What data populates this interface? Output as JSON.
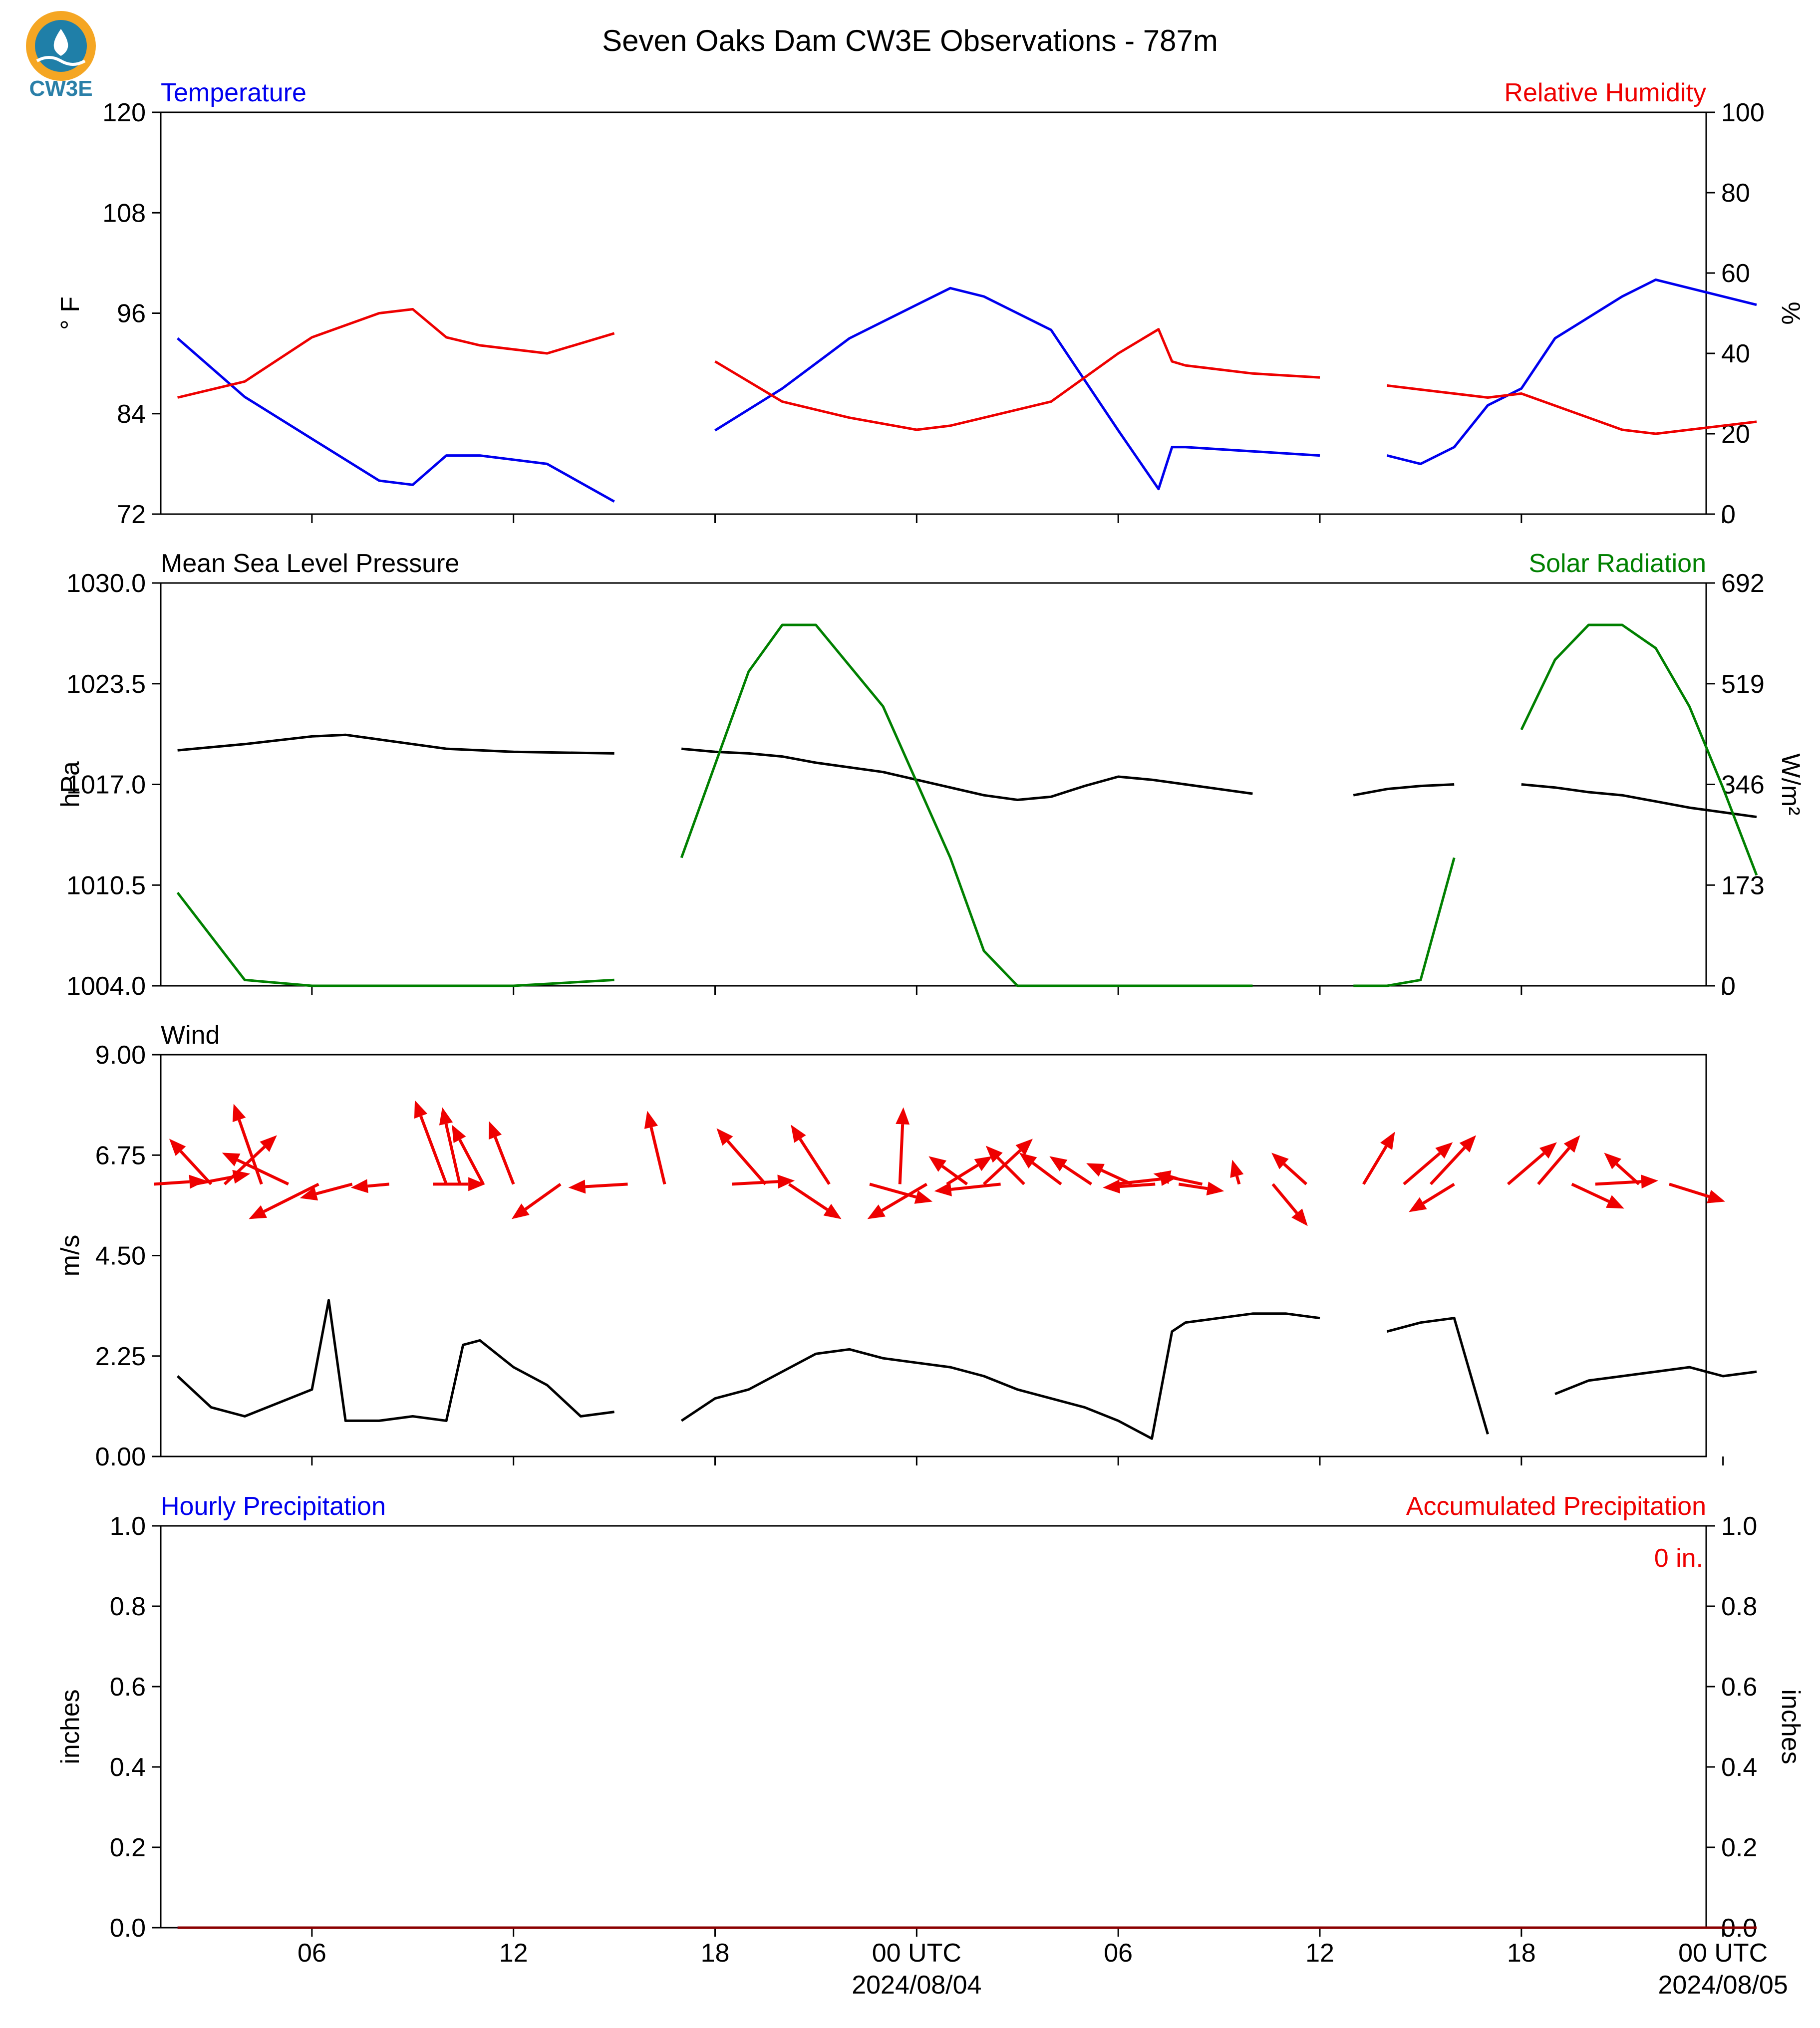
{
  "title": "Seven Oaks Dam CW3E Observations - 787m",
  "logo_text": "CW3E",
  "colors": {
    "temperature": "#0000ee",
    "humidity": "#ee0000",
    "pressure": "#000000",
    "solar": "#008000",
    "wind_arrows": "#ee0000",
    "wind_speed": "#000000"
  },
  "x_axis": {
    "tick_labels": [
      "06",
      "12",
      "18",
      "00 UTC",
      "06",
      "12",
      "18",
      "00 UTC"
    ],
    "date_labels": [
      "2024/08/04",
      "2024/08/05"
    ]
  },
  "chart_data": [
    {
      "type": "line",
      "name": "temperature-humidity",
      "title_left": "Temperature",
      "title_right": "Relative Humidity",
      "ylabel_left": "° F",
      "ylabel_right": "%",
      "ylim_left": [
        72,
        120
      ],
      "ylim_right": [
        0,
        100
      ],
      "yticks_left": [
        "72",
        "84",
        "96",
        "108",
        "120"
      ],
      "yticks_right": [
        "0",
        "20",
        "40",
        "60",
        "80",
        "100"
      ],
      "x_hours": [
        1,
        3,
        5,
        7,
        8,
        9,
        10,
        12,
        14,
        15,
        17,
        19,
        21,
        23,
        24,
        25,
        27,
        29,
        30.2,
        30.6,
        31,
        33,
        35,
        36,
        37,
        38,
        39,
        40,
        41,
        42,
        44,
        45,
        48
      ],
      "series": [
        {
          "name": "Temperature",
          "axis": "left",
          "values": [
            93,
            86,
            81,
            76,
            75.5,
            79,
            79,
            78,
            73.5,
            null,
            82,
            87,
            93,
            97,
            99,
            98,
            94,
            82,
            75,
            80,
            80,
            79.5,
            79,
            null,
            79,
            78,
            80,
            85,
            87,
            93,
            98,
            100,
            97
          ]
        },
        {
          "name": "Relative Humidity",
          "axis": "right",
          "values": [
            29,
            33,
            44,
            50,
            51,
            44,
            42,
            40,
            45,
            null,
            38,
            28,
            24,
            21,
            22,
            24,
            28,
            40,
            46,
            38,
            37,
            35,
            34,
            null,
            32,
            31,
            30,
            29,
            30,
            27,
            21,
            20,
            23
          ]
        }
      ]
    },
    {
      "type": "line",
      "name": "pressure-solar",
      "title_left": "Mean Sea Level Pressure",
      "title_right": "Solar Radiation",
      "ylabel_left": "hPa",
      "ylabel_right": "W/m²",
      "ylim_left": [
        1004.0,
        1030.0
      ],
      "ylim_right": [
        0,
        692
      ],
      "yticks_left": [
        "1004.0",
        "1010.5",
        "1017.0",
        "1023.5",
        "1030.0"
      ],
      "yticks_right": [
        "0",
        "173",
        "346",
        "519",
        "692"
      ],
      "x_hours": [
        1,
        3,
        5,
        6,
        7,
        9,
        11,
        14,
        15,
        16,
        17,
        18,
        19,
        20,
        22,
        24,
        25,
        26,
        27,
        28,
        29,
        30,
        31,
        32,
        33,
        35,
        36,
        37,
        38,
        39,
        40,
        41,
        42,
        43,
        44,
        45,
        46,
        47,
        48
      ],
      "series": [
        {
          "name": "Mean Sea Level Pressure",
          "axis": "left",
          "values": [
            1019.2,
            1019.6,
            1020.1,
            1020.2,
            1019.9,
            1019.3,
            1019.1,
            1019.0,
            null,
            1019.3,
            1019.1,
            1019.0,
            1018.8,
            1018.4,
            1017.8,
            1016.8,
            1016.3,
            1016.0,
            1016.2,
            1016.9,
            1017.5,
            1017.3,
            1017.0,
            1016.7,
            1016.4,
            null,
            1016.3,
            1016.7,
            1016.9,
            1017.0,
            null,
            1017.0,
            1016.8,
            1016.5,
            1016.3,
            1015.9,
            1015.5,
            1015.2,
            1014.9
          ]
        },
        {
          "name": "Solar Radiation",
          "axis": "right",
          "values": [
            160,
            10,
            0,
            0,
            0,
            0,
            0,
            10,
            null,
            220,
            380,
            540,
            620,
            620,
            480,
            220,
            60,
            0,
            0,
            0,
            0,
            0,
            0,
            0,
            0,
            null,
            0,
            0,
            10,
            220,
            null,
            440,
            560,
            620,
            620,
            580,
            480,
            340,
            190
          ]
        }
      ]
    },
    {
      "type": "line",
      "name": "wind",
      "title_left": "Wind",
      "ylabel_left": "m/s",
      "ylim_left": [
        0.0,
        9.0
      ],
      "yticks_left": [
        "0.00",
        "2.25",
        "4.50",
        "6.75",
        "9.00"
      ],
      "x_hours": [
        1,
        2,
        3,
        4,
        5,
        5.5,
        6,
        7,
        8,
        9,
        9.5,
        10,
        11,
        12,
        13,
        14,
        15,
        16,
        17,
        18,
        19,
        20,
        21,
        22,
        23,
        24,
        25,
        26,
        27,
        28,
        29,
        30,
        30.6,
        31,
        32,
        33,
        34,
        35,
        36,
        37,
        38,
        39,
        40,
        41,
        42,
        43,
        44,
        45,
        46,
        47,
        48
      ],
      "series": [
        {
          "name": "Wind Speed",
          "axis": "left",
          "values": [
            1.8,
            1.1,
            0.9,
            1.2,
            1.5,
            3.5,
            0.8,
            0.8,
            0.9,
            0.8,
            2.5,
            2.6,
            2.0,
            1.6,
            0.9,
            1.0,
            null,
            0.8,
            1.3,
            1.5,
            1.9,
            2.3,
            2.4,
            2.2,
            2.1,
            2.0,
            1.8,
            1.5,
            1.3,
            1.1,
            0.8,
            0.4,
            2.8,
            3.0,
            3.1,
            3.2,
            3.2,
            3.1,
            null,
            2.8,
            3.0,
            3.1,
            0.5,
            null,
            1.4,
            1.7,
            1.8,
            1.9,
            2.0,
            1.8,
            1.9
          ]
        }
      ],
      "barbs_row_value": 6.1,
      "barbs": [
        {
          "x": 0.3,
          "u": 1.5,
          "v": 0.1
        },
        {
          "x": 1.5,
          "u": 1.6,
          "v": 0.3
        },
        {
          "x": 2.0,
          "u": -1.2,
          "v": 1.3
        },
        {
          "x": 2.4,
          "u": 1.5,
          "v": 1.4
        },
        {
          "x": 3.5,
          "u": -0.8,
          "v": 2.3
        },
        {
          "x": 4.3,
          "u": -1.9,
          "v": 0.9
        },
        {
          "x": 5.2,
          "u": -2.0,
          "v": -1.0
        },
        {
          "x": 6.2,
          "u": -1.5,
          "v": -0.4
        },
        {
          "x": 7.3,
          "u": -1.1,
          "v": -0.1
        },
        {
          "x": 8.6,
          "u": 1.5,
          "v": 0.0
        },
        {
          "x": 9.0,
          "u": -0.9,
          "v": 2.4
        },
        {
          "x": 9.4,
          "u": -0.5,
          "v": 2.2
        },
        {
          "x": 10.1,
          "u": -0.9,
          "v": 1.7
        },
        {
          "x": 11.0,
          "u": -0.7,
          "v": 1.8
        },
        {
          "x": 12.4,
          "u": -1.4,
          "v": -1.0
        },
        {
          "x": 14.4,
          "u": -1.7,
          "v": -0.1
        },
        {
          "x": 15.5,
          "u": -0.5,
          "v": 2.1
        },
        {
          "x": 17.5,
          "u": 1.8,
          "v": 0.1
        },
        {
          "x": 18.5,
          "u": -1.4,
          "v": 1.6
        },
        {
          "x": 19.2,
          "u": 1.5,
          "v": -1.0
        },
        {
          "x": 20.4,
          "u": -1.1,
          "v": 1.7
        },
        {
          "x": 21.6,
          "u": 1.8,
          "v": -0.5
        },
        {
          "x": 22.5,
          "u": 0.1,
          "v": 2.2
        },
        {
          "x": 23.3,
          "u": -1.7,
          "v": -1.0
        },
        {
          "x": 23.9,
          "u": 1.3,
          "v": 0.8
        },
        {
          "x": 24.5,
          "u": -1.1,
          "v": 0.8
        },
        {
          "x": 25.0,
          "u": 1.4,
          "v": 1.3
        },
        {
          "x": 25.5,
          "u": -1.9,
          "v": -0.2
        },
        {
          "x": 26.2,
          "u": -1.1,
          "v": 1.1
        },
        {
          "x": 27.3,
          "u": -1.2,
          "v": 0.9
        },
        {
          "x": 28.2,
          "u": -1.2,
          "v": 0.8
        },
        {
          "x": 28.9,
          "u": 1.8,
          "v": 0.2
        },
        {
          "x": 29.4,
          "u": -1.3,
          "v": 0.6
        },
        {
          "x": 30.1,
          "u": -1.5,
          "v": -0.1
        },
        {
          "x": 30.8,
          "u": 1.3,
          "v": -0.2
        },
        {
          "x": 31.5,
          "u": -1.4,
          "v": 0.3
        },
        {
          "x": 32.6,
          "u": -0.2,
          "v": 0.7
        },
        {
          "x": 33.6,
          "u": 1.0,
          "v": -1.2
        },
        {
          "x": 34.6,
          "u": -1.0,
          "v": 0.9
        },
        {
          "x": 36.3,
          "u": 0.9,
          "v": 1.5
        },
        {
          "x": 37.5,
          "u": 1.4,
          "v": 1.2
        },
        {
          "x": 38.3,
          "u": 1.3,
          "v": 1.4
        },
        {
          "x": 39.0,
          "u": -1.3,
          "v": -0.8
        },
        {
          "x": 40.6,
          "u": 1.4,
          "v": 1.2
        },
        {
          "x": 41.5,
          "u": 1.2,
          "v": 1.4
        },
        {
          "x": 42.5,
          "u": 1.5,
          "v": -0.7
        },
        {
          "x": 43.2,
          "u": 1.8,
          "v": 0.1
        },
        {
          "x": 44.5,
          "u": -1.0,
          "v": 0.9
        },
        {
          "x": 45.4,
          "u": 1.6,
          "v": -0.5
        }
      ]
    },
    {
      "type": "line",
      "name": "precipitation",
      "title_left": "Hourly Precipitation",
      "title_right": "Accumulated Precipitation",
      "ylabel_left": "inches",
      "ylabel_right": "inches",
      "ylim_left": [
        0.0,
        1.0
      ],
      "ylim_right": [
        0.0,
        1.0
      ],
      "yticks_left": [
        "0.0",
        "0.2",
        "0.4",
        "0.6",
        "0.8",
        "1.0"
      ],
      "yticks_right": [
        "0.0",
        "0.2",
        "0.4",
        "0.6",
        "0.8",
        "1.0"
      ],
      "accumulated_label": "0 in.",
      "x_hours": [
        1,
        48
      ],
      "series": [
        {
          "name": "Hourly Precipitation",
          "axis": "left",
          "values": [
            0.0,
            0.0
          ]
        },
        {
          "name": "Accumulated Precipitation",
          "axis": "right",
          "values": [
            0.0,
            0.0
          ]
        }
      ]
    }
  ]
}
